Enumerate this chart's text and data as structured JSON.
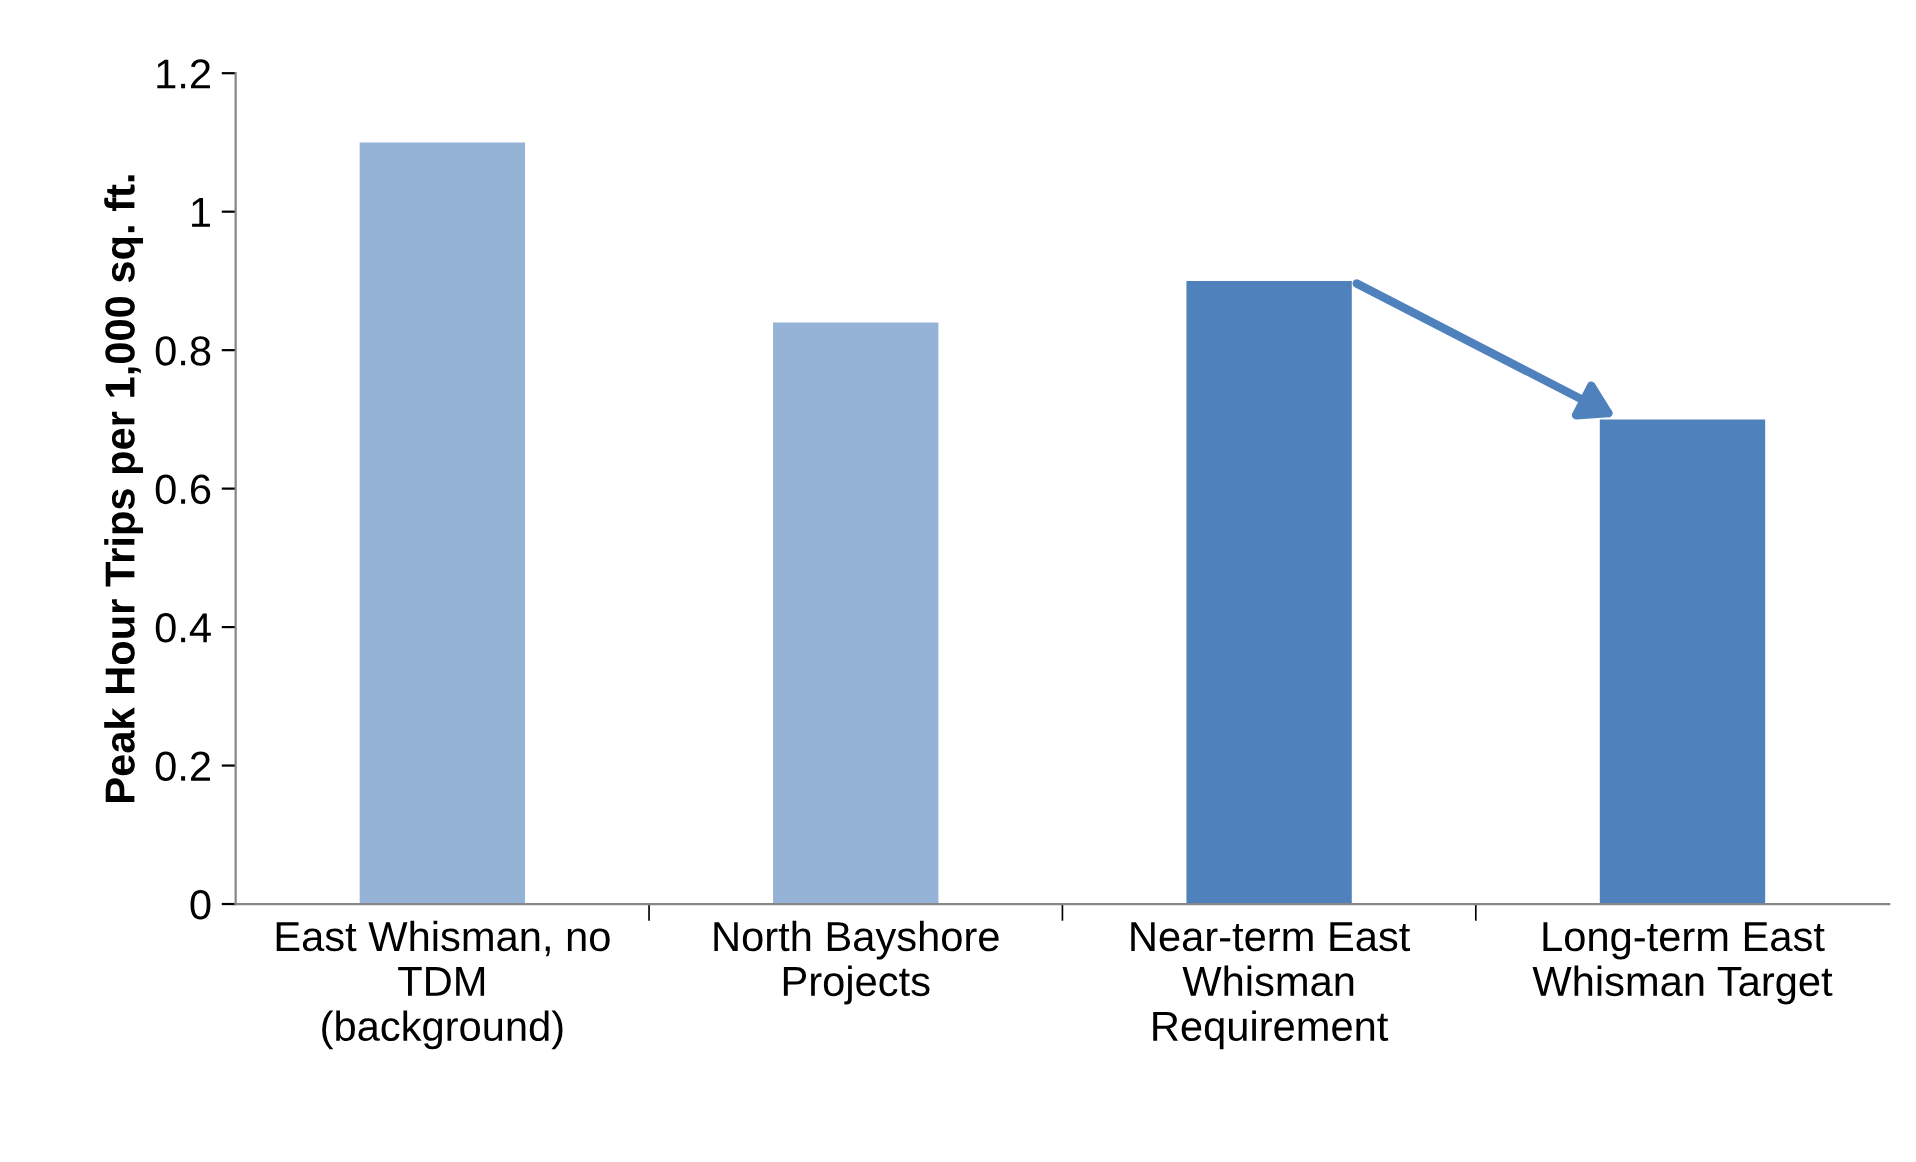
{
  "chart_data": {
    "type": "bar",
    "ylabel": "Peak Hour Trips per 1,000 sq. ft.",
    "categories": [
      "East Whisman, no\nTDM\n(background)",
      "North Bayshore\nProjects",
      "Near-term East\nWhisman\nRequirement",
      "Long-term East\nWhisman Target"
    ],
    "values": [
      1.1,
      0.84,
      0.9,
      0.7
    ],
    "colors": [
      "#95b3d7",
      "#95b3d7",
      "#4f81bd",
      "#4f81bd"
    ],
    "ylim": [
      0,
      1.2
    ],
    "yticks": [
      0,
      0.2,
      0.4,
      0.6,
      0.8,
      1,
      1.2
    ],
    "grid": false,
    "legend": false
  }
}
